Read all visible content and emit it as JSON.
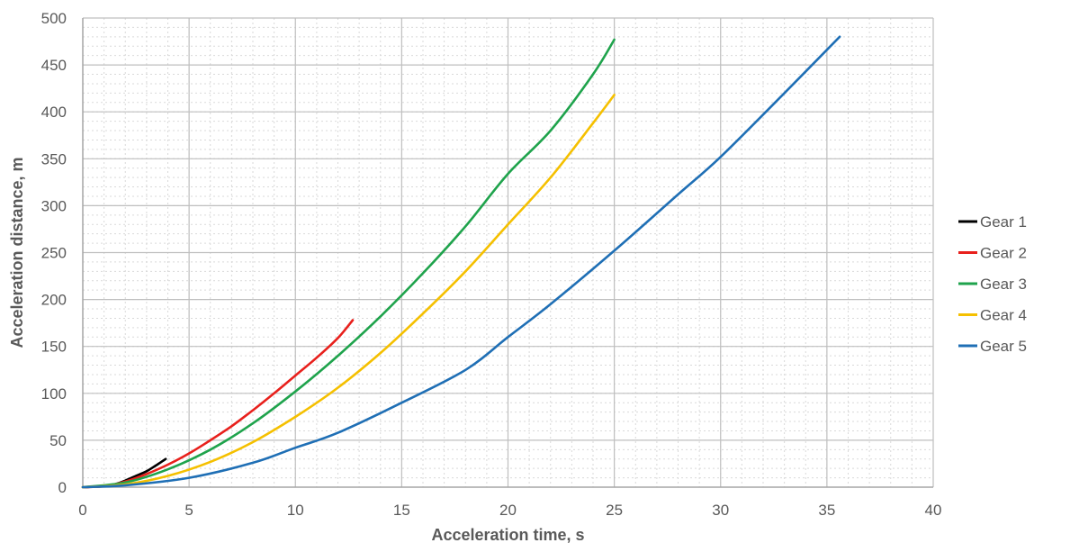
{
  "chart_data": {
    "type": "line",
    "title": "",
    "xlabel": "Acceleration time, s",
    "ylabel": "Acceleration distance, m",
    "xlim": [
      0,
      40
    ],
    "ylim": [
      0,
      500
    ],
    "x_ticks": [
      0,
      5,
      10,
      15,
      20,
      25,
      30,
      35,
      40
    ],
    "y_ticks": [
      0,
      50,
      100,
      150,
      200,
      250,
      300,
      350,
      400,
      450,
      500
    ],
    "x_minor_step": 1,
    "y_minor_step": 10,
    "grid": true,
    "legend_position": "right",
    "series": [
      {
        "name": "Gear 1",
        "color": "#000000",
        "points": [
          [
            0,
            0
          ],
          [
            1,
            1
          ],
          [
            1.5,
            3
          ],
          [
            2,
            7
          ],
          [
            2.5,
            12
          ],
          [
            3,
            17
          ],
          [
            3.5,
            24
          ],
          [
            3.9,
            30
          ]
        ]
      },
      {
        "name": "Gear 2",
        "color": "#e8201c",
        "points": [
          [
            0,
            0
          ],
          [
            1,
            1
          ],
          [
            2,
            6
          ],
          [
            3,
            14
          ],
          [
            4,
            24
          ],
          [
            5,
            36
          ],
          [
            6,
            50
          ],
          [
            7,
            65
          ],
          [
            8,
            82
          ],
          [
            9,
            100
          ],
          [
            10,
            119
          ],
          [
            11,
            138
          ],
          [
            12,
            159
          ],
          [
            12.7,
            178
          ]
        ]
      },
      {
        "name": "Gear 3",
        "color": "#1fa34c",
        "points": [
          [
            0,
            0
          ],
          [
            2,
            5
          ],
          [
            4,
            19
          ],
          [
            6,
            40
          ],
          [
            8,
            68
          ],
          [
            10,
            102
          ],
          [
            12,
            140
          ],
          [
            14,
            182
          ],
          [
            16,
            228
          ],
          [
            18,
            278
          ],
          [
            20,
            334
          ],
          [
            22,
            380
          ],
          [
            24,
            440
          ],
          [
            25,
            477
          ]
        ]
      },
      {
        "name": "Gear 4",
        "color": "#f5c000",
        "points": [
          [
            0,
            0
          ],
          [
            2,
            3
          ],
          [
            4,
            12
          ],
          [
            6,
            27
          ],
          [
            8,
            48
          ],
          [
            10,
            75
          ],
          [
            12,
            106
          ],
          [
            14,
            143
          ],
          [
            16,
            185
          ],
          [
            18,
            230
          ],
          [
            20,
            280
          ],
          [
            22,
            330
          ],
          [
            24,
            388
          ],
          [
            25,
            418
          ]
        ]
      },
      {
        "name": "Gear 5",
        "color": "#1f6fb5",
        "points": [
          [
            0,
            0
          ],
          [
            2,
            2
          ],
          [
            5,
            10
          ],
          [
            8,
            26
          ],
          [
            10,
            42
          ],
          [
            12,
            58
          ],
          [
            15,
            90
          ],
          [
            18,
            125
          ],
          [
            20,
            160
          ],
          [
            22,
            195
          ],
          [
            25,
            252
          ],
          [
            28,
            312
          ],
          [
            30,
            352
          ],
          [
            33,
            420
          ],
          [
            35.6,
            480
          ]
        ]
      }
    ]
  }
}
